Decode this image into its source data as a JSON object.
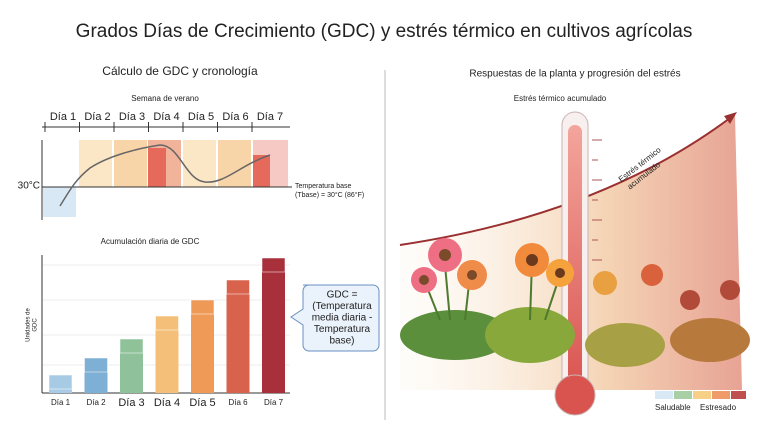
{
  "title": "Grados Días de Crecimiento (GDC) y estrés térmico en cultivos agrícolas",
  "left": {
    "heading": "Cálculo de GDC y cronología",
    "week": "Semana de verano",
    "days": [
      "Día 1",
      "Día 2",
      "Día 3",
      "Día 4",
      "Día 5",
      "Día 6",
      "Día 7"
    ],
    "temp": "30°C",
    "base_label": [
      "Temperatura base",
      "(Tbase) = 30°C (86°F)"
    ],
    "accum_title": "Acumulación diaria de GDC",
    "y_label": [
      "Unidades de",
      "GDC"
    ],
    "formula": [
      "GDC =",
      "(Temperatura",
      "media diaria -",
      "Temperatura",
      "base)"
    ]
  },
  "right": {
    "heading": "Respuestas de la planta y progresión del estrés",
    "thermo_label": "Estrés térmico acumulado",
    "arrow_label": [
      "Estrés térmico",
      "acumulado"
    ],
    "legend": [
      "Saludable",
      "Estresado"
    ]
  }
}
